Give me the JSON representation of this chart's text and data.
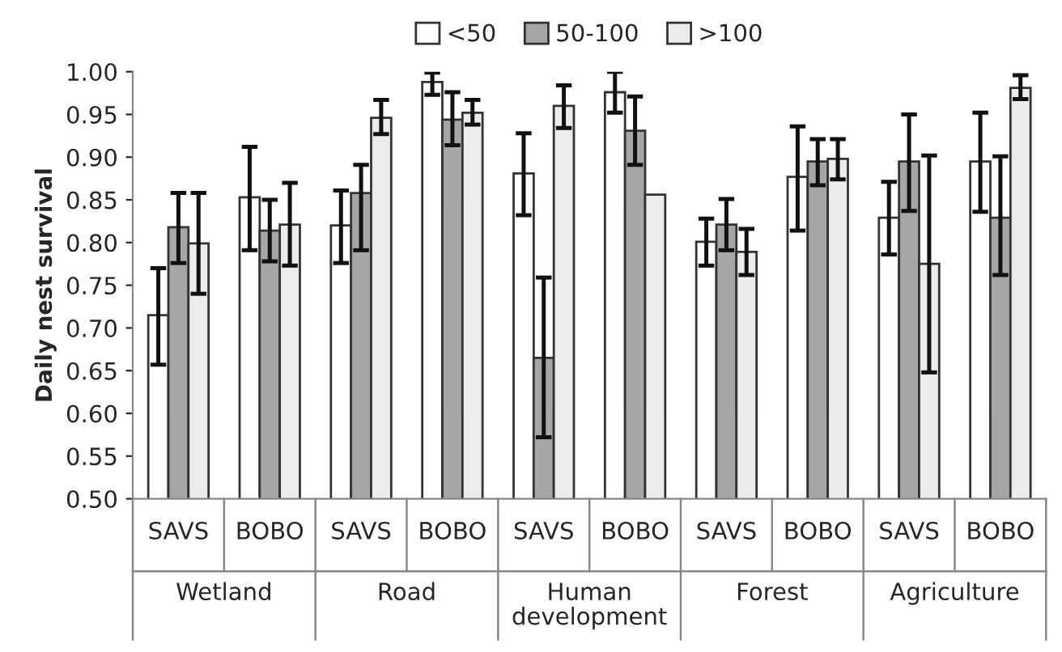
{
  "chart_data": {
    "type": "bar",
    "ylabel": "Daily nest survival",
    "categories": [
      "SAVS",
      "BOBO",
      "SAVS",
      "BOBO",
      "SAVS",
      "BOBO",
      "SAVS",
      "BOBO",
      "SAVS",
      "BOBO"
    ],
    "annotations": [
      "Wetland",
      "Road",
      "Human development",
      "Forest",
      "Agriculture"
    ],
    "series": [
      {
        "name": "<50",
        "color": "#ffffff",
        "values": [
          0.715,
          0.853,
          0.82,
          0.988,
          0.881,
          0.976,
          0.801,
          0.877,
          0.829,
          0.895
        ],
        "errors": [
          [
            0.657,
            0.77
          ],
          [
            0.791,
            0.912
          ],
          [
            0.776,
            0.861
          ],
          [
            0.973,
            0.999
          ],
          [
            0.832,
            0.928
          ],
          [
            0.952,
            1.0
          ],
          [
            0.773,
            0.828
          ],
          [
            0.814,
            0.936
          ],
          [
            0.786,
            0.871
          ],
          [
            0.836,
            0.952
          ]
        ]
      },
      {
        "name": "50-100",
        "color": "#a6a6a6",
        "values": [
          0.818,
          0.814,
          0.858,
          0.944,
          0.665,
          0.931,
          0.821,
          0.895,
          0.895,
          0.829
        ],
        "errors": [
          [
            0.776,
            0.858
          ],
          [
            0.778,
            0.85
          ],
          [
            0.791,
            0.891
          ],
          [
            0.914,
            0.976
          ],
          [
            0.572,
            0.759
          ],
          [
            0.891,
            0.971
          ],
          [
            0.791,
            0.851
          ],
          [
            0.867,
            0.921
          ],
          [
            0.837,
            0.95
          ],
          [
            0.762,
            0.901
          ]
        ]
      },
      {
        "name": ">100",
        "color": "#ececec",
        "values": [
          0.799,
          0.821,
          0.946,
          0.952,
          0.96,
          0.856,
          0.789,
          0.898,
          0.775,
          0.981
        ],
        "errors": [
          [
            0.74,
            0.858
          ],
          [
            0.773,
            0.87
          ],
          [
            0.927,
            0.967
          ],
          [
            0.938,
            0.967
          ],
          [
            0.934,
            0.984
          ],
          null,
          [
            0.762,
            0.816
          ],
          [
            0.874,
            0.921
          ],
          [
            0.648,
            0.902
          ],
          [
            0.968,
            0.996
          ]
        ]
      }
    ],
    "ylim": [
      0.5,
      1.0
    ],
    "yticks": [
      {
        "value": 0.5,
        "label": "0.50"
      },
      {
        "value": 0.55,
        "label": "0.55"
      },
      {
        "value": 0.6,
        "label": "0.60"
      },
      {
        "value": 0.65,
        "label": "0.65"
      },
      {
        "value": 0.7,
        "label": "0.70"
      },
      {
        "value": 0.75,
        "label": "0.75"
      },
      {
        "value": 0.8,
        "label": "0.80"
      },
      {
        "value": 0.85,
        "label": "0.85"
      },
      {
        "value": 0.9,
        "label": "0.90"
      },
      {
        "value": 0.95,
        "label": "0.95"
      },
      {
        "value": 1.0,
        "label": "1.00"
      }
    ],
    "grid": false,
    "legend": "top"
  }
}
